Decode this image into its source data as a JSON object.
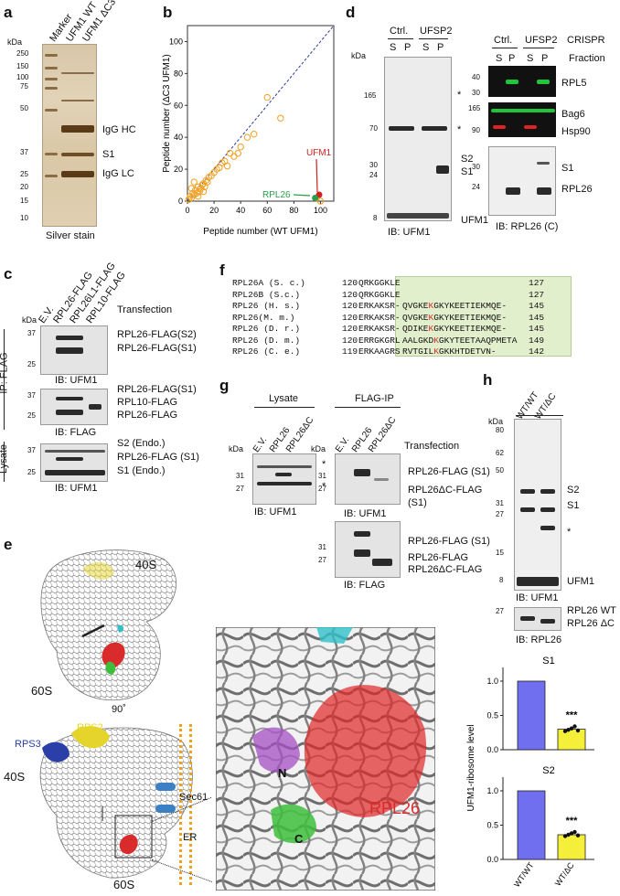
{
  "panel_labels": {
    "a": "a",
    "b": "b",
    "c": "c",
    "d": "d",
    "e": "e",
    "f": "f",
    "g": "g",
    "h": "h"
  },
  "panel_a": {
    "lanes": [
      "Marker",
      "UFM1 WT",
      "UFM1 ΔC3"
    ],
    "kda_title": "kDa",
    "kda": [
      "250",
      "150",
      "100",
      "75",
      "50",
      "37",
      "25",
      "20",
      "15",
      "10"
    ],
    "bands": [
      "IgG HC",
      "S1",
      "IgG LC"
    ],
    "caption": "Silver stain"
  },
  "panel_b": {
    "chart_data": {
      "type": "scatter",
      "xlabel": "Peptide number (WT UFM1)",
      "ylabel": "Peptide number (ΔC3 UFM1)",
      "xlim": [
        0,
        110
      ],
      "ylim": [
        0,
        110
      ],
      "xticks": [
        "0",
        "20",
        "40",
        "60",
        "80",
        "100"
      ],
      "yticks": [
        "0",
        "20",
        "40",
        "60",
        "80",
        "100"
      ],
      "points": [
        [
          1,
          1
        ],
        [
          2,
          3
        ],
        [
          3,
          2
        ],
        [
          4,
          5
        ],
        [
          5,
          4
        ],
        [
          6,
          7
        ],
        [
          7,
          5
        ],
        [
          8,
          9
        ],
        [
          9,
          6
        ],
        [
          10,
          8
        ],
        [
          11,
          10
        ],
        [
          12,
          11
        ],
        [
          13,
          9
        ],
        [
          14,
          13
        ],
        [
          15,
          12
        ],
        [
          16,
          15
        ],
        [
          18,
          16
        ],
        [
          20,
          18
        ],
        [
          22,
          20
        ],
        [
          24,
          21
        ],
        [
          26,
          24
        ],
        [
          28,
          25
        ],
        [
          30,
          22
        ],
        [
          32,
          30
        ],
        [
          35,
          28
        ],
        [
          38,
          30
        ],
        [
          40,
          34
        ],
        [
          45,
          40
        ],
        [
          50,
          42
        ],
        [
          60,
          65
        ],
        [
          70,
          52
        ],
        [
          5,
          12
        ],
        [
          3,
          8
        ],
        [
          8,
          3
        ],
        [
          12,
          6
        ],
        [
          100,
          0
        ],
        [
          97,
          2
        ]
      ],
      "highlights": [
        {
          "label": "UFM1",
          "x": 99,
          "y": 4,
          "color": "#cc2222"
        },
        {
          "label": "RPL26",
          "x": 96,
          "y": 2,
          "color": "#2a9d4a"
        }
      ],
      "diagonal": true
    }
  },
  "panel_c": {
    "lanes": [
      "E.V.",
      "RPL26-FLAG",
      "RPL26L1-FLAG",
      "RPL10-FLAG"
    ],
    "header": "Transfection",
    "kda_title": "kDa",
    "ip_label": "IP: FLAG",
    "lysate_label": "Lysate",
    "blots": [
      {
        "kda": [
          "37",
          "25"
        ],
        "ib": "IB: UFM1",
        "bands": [
          "RPL26-FLAG(S2)",
          "RPL26-FLAG(S1)"
        ]
      },
      {
        "kda": [
          "37",
          "25"
        ],
        "ib": "IB: FLAG",
        "bands": [
          "RPL26-FLAG(S1)",
          "RPL10-FLAG",
          "RPL26-FLAG"
        ]
      },
      {
        "kda": [
          "37",
          "25"
        ],
        "ib": "IB: UFM1",
        "bands": [
          "S2 (Endo.)",
          "RPL26-FLAG (S1)",
          "S1 (Endo.)"
        ]
      }
    ]
  },
  "panel_d": {
    "left": {
      "groups": [
        "Ctrl.",
        "UFSP2"
      ],
      "fractions": [
        "S",
        "P",
        "S",
        "P"
      ],
      "kda_title": "kDa",
      "kda": [
        "165",
        "70",
        "30",
        "24",
        "8"
      ],
      "bands": [
        "*",
        "*",
        "S2",
        "S1",
        "UFM1"
      ],
      "ib": "IB: UFM1"
    },
    "right": {
      "groups": [
        "Ctrl.",
        "UFSP2",
        "CRISPR"
      ],
      "fractions": [
        "S",
        "P",
        "S",
        "P"
      ],
      "fraction_label": "Fraction",
      "kda": [
        "40",
        "30",
        "165",
        "90",
        "30",
        "24"
      ],
      "bands": [
        "RPL5",
        "Bag6",
        "Hsp90",
        "S1",
        "RPL26"
      ],
      "ib": "IB: RPL26 (C)",
      "colors": {
        "rpl5": "#22c43a",
        "bag6": "#22c43a",
        "hsp90": "#e02222"
      }
    }
  },
  "panel_e": {
    "labels": [
      "40S",
      "60S",
      "90˚",
      "RPS2",
      "RPS3",
      "40S",
      "Sec61",
      "ER",
      "60S",
      "N",
      "C",
      "RPL26"
    ],
    "colors": {
      "rpl26": "#d92b2b",
      "rps2": "#e5d52a",
      "rps3": "#2a3fa8",
      "sec61": "#3b7fc4",
      "membrane": "#f0a020",
      "nterm": "#a64fc4",
      "cterm": "#3dbf3d",
      "cyan": "#2fc0c8"
    }
  },
  "panel_f": {
    "rows": [
      {
        "name": "RPL26A (S. c.)",
        "start": "120",
        "seq": "QRKGGKLE",
        "ext": "",
        "end": "127"
      },
      {
        "name": "RPL26B (S.c.)",
        "start": "120",
        "seq": "QRKGGKLE",
        "ext": "",
        "end": "127"
      },
      {
        "name": "RPL26 (H. s.)",
        "start": "120",
        "seq": "ERKAKSR-",
        "ext": "QVGKEKGKYKEETIEKMQE-",
        "end": "145"
      },
      {
        "name": "RPL26(M. m.)",
        "start": "120",
        "seq": "ERKAKSR-",
        "ext": "QVGKEKGKYKEETIEKMQE-",
        "end": "145"
      },
      {
        "name": "RPL26 (D. r.)",
        "start": "120",
        "seq": "ERKAKSR-",
        "ext": "QDIKEKGKYKEETIEKMQE-",
        "end": "145"
      },
      {
        "name": "RPL26 (D. m.)",
        "start": "120",
        "seq": "ERRGKGRL",
        "ext": "AALGKDKGKYTEETAAQPMETA",
        "end": "149"
      },
      {
        "name": "RPL26 (C. e.)",
        "start": "119",
        "seq": "ERKAAGRS",
        "ext": "RVTGILKGKKHTDETVN-",
        "end": "142"
      }
    ]
  },
  "panel_g": {
    "lysate_title": "Lysate",
    "ip_title": "FLAG-IP",
    "header": "Transfection",
    "lanes": [
      "E.V.",
      "RPL26",
      "RPL26ΔC"
    ],
    "kda_title": "kDa",
    "kda": [
      "31",
      "27"
    ],
    "ib_ufm1": "IB:  UFM1",
    "ib_flag": "IB: FLAG",
    "bands_top": [
      "RPL26-FLAG (S1)",
      "RPL26ΔC-FLAG",
      "(S1)"
    ],
    "bands_bottom": [
      "RPL26-FLAG (S1)",
      "RPL26-FLAG",
      "RPL26ΔC-FLAG"
    ],
    "marks": [
      "*",
      "*"
    ]
  },
  "panel_h": {
    "lanes": [
      "WT/WT",
      "WT/ΔC"
    ],
    "kda_title": "kDa",
    "kda": [
      "80",
      "62",
      "50",
      "31",
      "27",
      "15",
      "8"
    ],
    "bands": [
      "S2",
      "S1",
      "*",
      "UFM1"
    ],
    "ib_ufm1": "IB:  UFM1",
    "lower_kda": [
      "27"
    ],
    "lower_bands": [
      "RPL26 WT",
      "RPL26 ΔC"
    ],
    "ib_rpl26": "IB: RPL26",
    "chart_data": [
      {
        "type": "bar",
        "title": "S1",
        "categories": [
          "WT/WT",
          "WT/ΔC"
        ],
        "values": [
          1.0,
          0.3
        ],
        "points": [
          0.27,
          0.29,
          0.31,
          0.34,
          0.28
        ],
        "significance": "***",
        "ylim": [
          0,
          1.2
        ],
        "yticks": [
          "0.0",
          "0.5",
          "1.0"
        ],
        "colors": [
          "#6f6ff0",
          "#f6ef3a"
        ]
      },
      {
        "type": "bar",
        "title": "S2",
        "categories": [
          "WT/WT",
          "WT/ΔC"
        ],
        "values": [
          1.0,
          0.36
        ],
        "points": [
          0.34,
          0.36,
          0.38,
          0.4,
          0.35
        ],
        "significance": "***",
        "ylim": [
          0,
          1.2
        ],
        "yticks": [
          "0.0",
          "0.5",
          "1.0"
        ],
        "colors": [
          "#6f6ff0",
          "#f6ef3a"
        ]
      }
    ],
    "ylabel": "UFM1-ribosome level"
  }
}
